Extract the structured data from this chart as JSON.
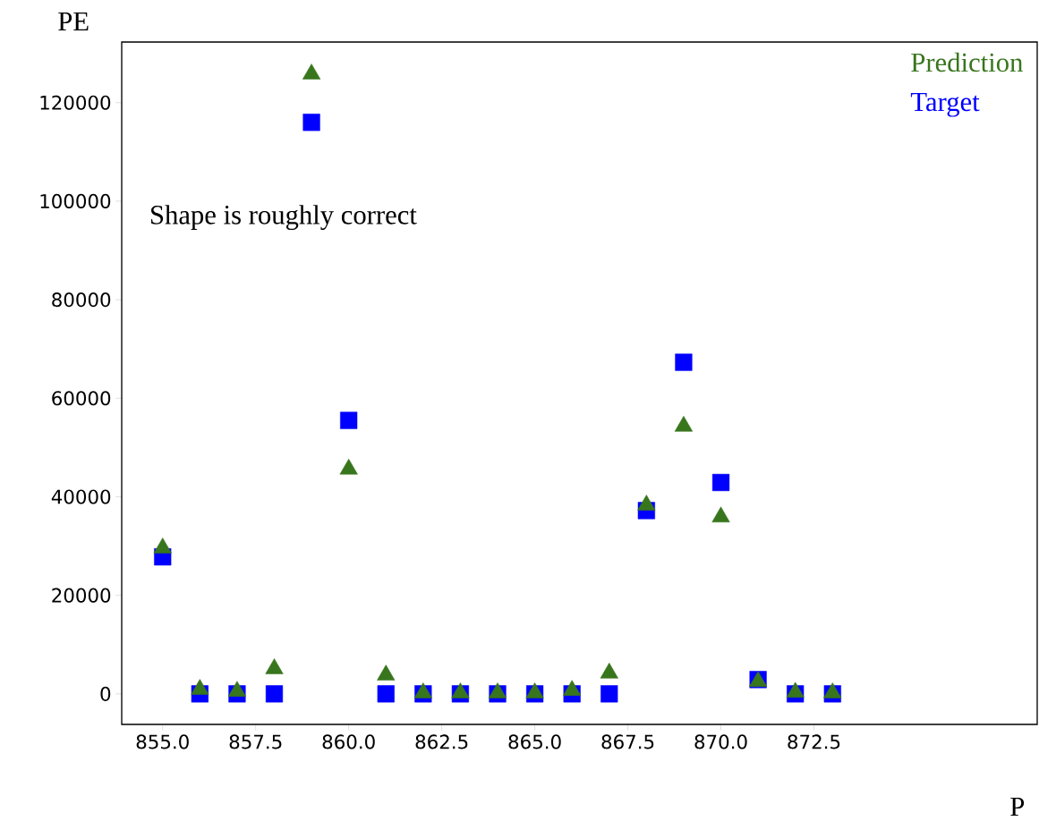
{
  "chart_data": {
    "type": "scatter",
    "ylabel": "PE",
    "xlabel": "P",
    "annotations": [
      "Shape is roughly correct"
    ],
    "x": [
      855,
      856,
      857,
      858,
      859,
      860,
      861,
      862,
      863,
      864,
      865,
      866,
      867,
      868,
      869,
      870,
      871,
      872,
      873
    ],
    "series": [
      {
        "name": "Prediction",
        "color": "#38761d",
        "marker": "triangle",
        "values": [
          29600,
          900,
          500,
          5100,
          125800,
          45600,
          3800,
          200,
          200,
          200,
          200,
          700,
          4200,
          38300,
          54300,
          35900,
          2500,
          300,
          200
        ]
      },
      {
        "name": "Target",
        "color": "#0000ff",
        "marker": "square",
        "values": [
          27800,
          0,
          0,
          0,
          116000,
          55500,
          0,
          0,
          0,
          0,
          0,
          0,
          0,
          37200,
          67300,
          42900,
          2900,
          0,
          0
        ]
      }
    ],
    "xlim": [
      853.9,
      878.5
    ],
    "ylim": [
      -6200,
      132300
    ],
    "xticks": [
      {
        "value": 855,
        "label": "855.0"
      },
      {
        "value": 857.5,
        "label": "857.5"
      },
      {
        "value": 860,
        "label": "860.0"
      },
      {
        "value": 862.5,
        "label": "862.5"
      },
      {
        "value": 865,
        "label": "865.0"
      },
      {
        "value": 867.5,
        "label": "867.5"
      },
      {
        "value": 870,
        "label": "870.0"
      },
      {
        "value": 872.5,
        "label": "872.5"
      }
    ],
    "yticks": [
      0,
      20000,
      40000,
      60000,
      80000,
      100000,
      120000
    ],
    "legend": "top right",
    "grid": false
  }
}
